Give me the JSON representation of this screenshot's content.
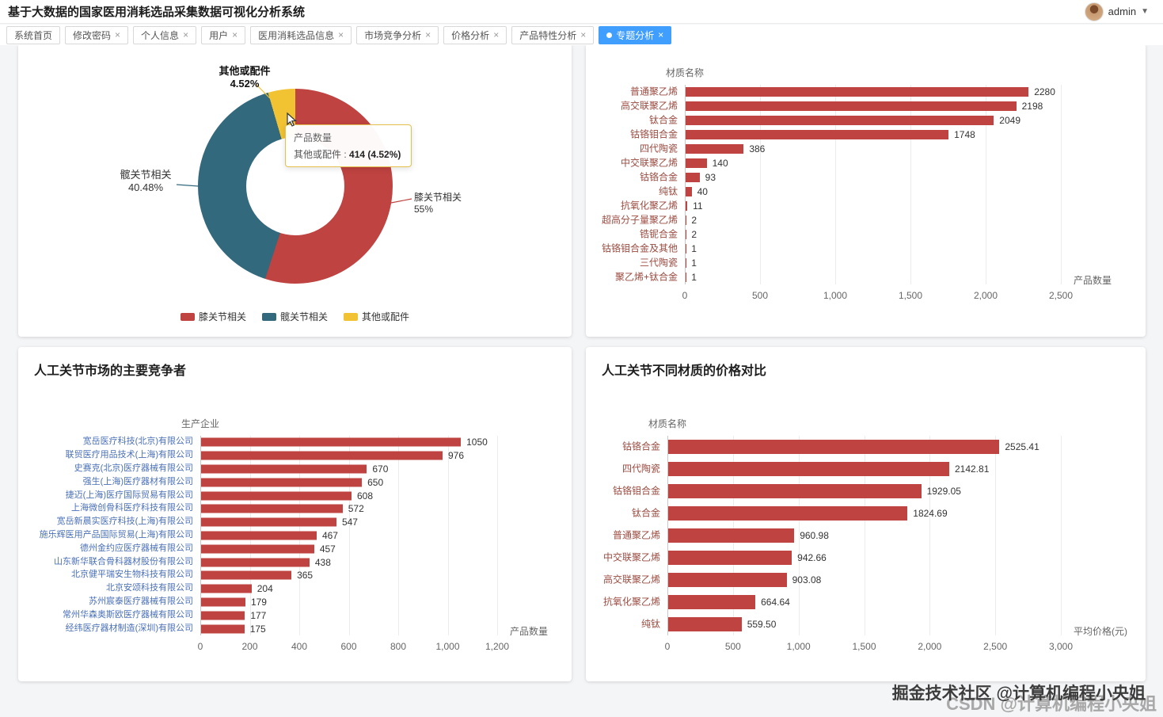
{
  "header": {
    "title": "基于大数据的国家医用消耗选品采集数据可视化分析系统",
    "user": "admin"
  },
  "tabs": [
    {
      "label": "系统首页",
      "closable": false,
      "active": false
    },
    {
      "label": "修改密码",
      "closable": true,
      "active": false
    },
    {
      "label": "个人信息",
      "closable": true,
      "active": false
    },
    {
      "label": "用户",
      "closable": true,
      "active": false
    },
    {
      "label": "医用消耗选品信息",
      "closable": true,
      "active": false
    },
    {
      "label": "市场竞争分析",
      "closable": true,
      "active": false
    },
    {
      "label": "价格分析",
      "closable": true,
      "active": false
    },
    {
      "label": "产品特性分析",
      "closable": true,
      "active": false
    },
    {
      "label": "专题分析",
      "closable": true,
      "active": true
    }
  ],
  "panels": {
    "competitors_title": "人工关节市场的主要竞争者",
    "prices_title": "人工关节不同材质的价格对比"
  },
  "pie_tooltip": {
    "title": "产品数量",
    "label": "其他或配件 :",
    "value": "414 (4.52%)"
  },
  "watermark": {
    "line1": "掘金技术社区 @计算机编程小央姐",
    "line2": "CSDN @计算机编程小央姐"
  },
  "chart_data": [
    {
      "type": "pie",
      "name": "产品数量",
      "slices": [
        {
          "name": "膝关节相关",
          "pct": 55,
          "pct_label": "55%"
        },
        {
          "name": "髋关节相关",
          "pct": 40.48,
          "pct_label": "40.48%"
        },
        {
          "name": "其他或配件",
          "pct": 4.52,
          "pct_label": "4.52%",
          "value": 414
        }
      ],
      "colors": [
        "#bf4340",
        "#33697c",
        "#f1c232"
      ],
      "legend": [
        "膝关节相关",
        "髋关节相关",
        "其他或配件"
      ],
      "legend_position": "bottom"
    },
    {
      "type": "bar",
      "orientation": "horizontal",
      "ylabel": "材质名称",
      "xlabel": "产品数量",
      "categories": [
        "普通聚乙烯",
        "高交联聚乙烯",
        "钛合金",
        "钴铬钼合金",
        "四代陶瓷",
        "中交联聚乙烯",
        "钴铬合金",
        "纯钛",
        "抗氧化聚乙烯",
        "超高分子量聚乙烯",
        "锆铌合金",
        "钴铬钼合金及其他",
        "三代陶瓷",
        "聚乙烯+钛合金"
      ],
      "values": [
        2280,
        2198,
        2049,
        1748,
        386,
        140,
        93,
        40,
        11,
        2,
        2,
        1,
        1,
        1
      ],
      "ticks": [
        "0",
        "500",
        "1,000",
        "1,500",
        "2,000",
        "2,500"
      ],
      "tick_values": [
        0,
        500,
        1000,
        1500,
        2000,
        2500
      ],
      "xlim": [
        0,
        2500
      ],
      "bar_color": "#bf4340",
      "grid": true
    },
    {
      "type": "bar",
      "orientation": "horizontal",
      "ylabel": "生产企业",
      "xlabel": "产品数量",
      "categories": [
        "宽岳医疗科技(北京)有限公司",
        "联贸医疗用品技术(上海)有限公司",
        "史赛克(北京)医疗器械有限公司",
        "强生(上海)医疗器材有限公司",
        "捷迈(上海)医疗国际贸易有限公司",
        "上海微创骨科医疗科技有限公司",
        "宽岳新晨实医疗科技(上海)有限公司",
        "施乐辉医用产品国际贸易(上海)有限公司",
        "德州金约应医疗器械有限公司",
        "山东新华联合骨科器材股份有限公司",
        "北京健平瑞安生物科技有限公司",
        "北京安颂科技有限公司",
        "苏州宸泰医疗器械有限公司",
        "常州华森奥斯欧医疗器械有限公司",
        "经纬医疗器材制造(深圳)有限公司"
      ],
      "values": [
        1050,
        976,
        670,
        650,
        608,
        572,
        547,
        467,
        457,
        438,
        365,
        204,
        179,
        177,
        175
      ],
      "ticks": [
        "0",
        "200",
        "400",
        "600",
        "800",
        "1,000",
        "1,200"
      ],
      "tick_values": [
        0,
        200,
        400,
        600,
        800,
        1000,
        1200
      ],
      "xlim": [
        0,
        1200
      ],
      "bar_color": "#bf4340",
      "grid": true
    },
    {
      "type": "bar",
      "orientation": "horizontal",
      "ylabel": "材质名称",
      "xlabel": "平均价格(元)",
      "categories": [
        "钴铬合金",
        "四代陶瓷",
        "钴铬钼合金",
        "钛合金",
        "普通聚乙烯",
        "中交联聚乙烯",
        "高交联聚乙烯",
        "抗氧化聚乙烯",
        "纯钛"
      ],
      "values": [
        2525.41,
        2142.81,
        1929.05,
        1824.69,
        960.98,
        942.66,
        903.08,
        664.64,
        559.5
      ],
      "value_labels": [
        "2525.41",
        "2142.81",
        "1929.05",
        "1824.69",
        "960.98",
        "942.66",
        "903.08",
        "664.64",
        "559.50"
      ],
      "ticks": [
        "0",
        "500",
        "1,000",
        "1,500",
        "2,000",
        "2,500",
        "3,000"
      ],
      "tick_values": [
        0,
        500,
        1000,
        1500,
        2000,
        2500,
        3000
      ],
      "xlim": [
        0,
        3000
      ],
      "bar_color": "#bf4340",
      "grid": true
    }
  ]
}
